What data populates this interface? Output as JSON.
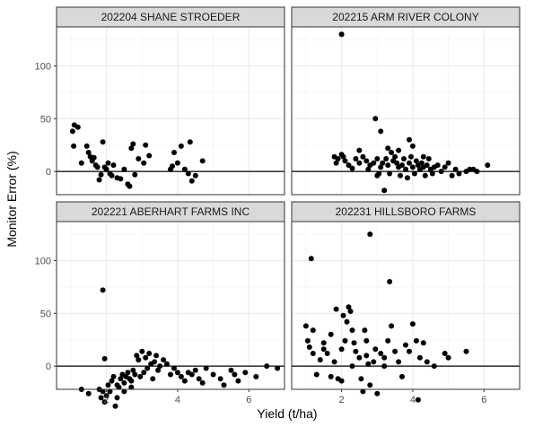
{
  "chart_data": {
    "type": "scatter",
    "xlabel": "Yield (t/ha)",
    "ylabel": "Monitor Error (%)",
    "xlim": [
      0.6,
      7.0
    ],
    "ylim": [
      -22,
      137
    ],
    "x_ticks": [
      2,
      4,
      6
    ],
    "y_ticks": [
      0,
      50,
      100
    ],
    "hline": 0,
    "grid": true,
    "colors": {
      "point": "#000000",
      "panel_border": "#333333",
      "strip_fill": "#d9d9d9",
      "grid_major": "#ebebeb",
      "grid_minor": "#f5f5f5",
      "hline": "#000000"
    },
    "panels": [
      {
        "title": "202204 SHANE STROEDER",
        "points": [
          [
            1.05,
            38
          ],
          [
            1.1,
            44
          ],
          [
            1.2,
            42
          ],
          [
            1.08,
            24
          ],
          [
            1.3,
            8
          ],
          [
            1.45,
            24
          ],
          [
            1.5,
            18
          ],
          [
            1.55,
            14
          ],
          [
            1.6,
            10
          ],
          [
            1.65,
            13
          ],
          [
            1.7,
            6
          ],
          [
            1.75,
            4
          ],
          [
            1.8,
            -8
          ],
          [
            1.85,
            -3
          ],
          [
            1.9,
            28
          ],
          [
            1.95,
            4
          ],
          [
            2.0,
            2
          ],
          [
            2.05,
            8
          ],
          [
            2.1,
            -2
          ],
          [
            2.15,
            -4
          ],
          [
            2.2,
            6
          ],
          [
            2.3,
            -6
          ],
          [
            2.4,
            -7
          ],
          [
            2.5,
            2
          ],
          [
            2.6,
            -12
          ],
          [
            2.65,
            -14
          ],
          [
            2.7,
            22
          ],
          [
            2.75,
            26
          ],
          [
            2.8,
            -3
          ],
          [
            2.9,
            12
          ],
          [
            3.05,
            8
          ],
          [
            3.1,
            25
          ],
          [
            3.2,
            15
          ],
          [
            3.8,
            2
          ],
          [
            3.85,
            5
          ],
          [
            3.9,
            18
          ],
          [
            4.0,
            8
          ],
          [
            4.1,
            24
          ],
          [
            4.2,
            2
          ],
          [
            4.3,
            -2
          ],
          [
            4.35,
            28
          ],
          [
            4.4,
            -9
          ],
          [
            4.5,
            -4
          ],
          [
            4.7,
            10
          ]
        ]
      },
      {
        "title": "202215 ARM RIVER COLONY",
        "points": [
          [
            2.0,
            130
          ],
          [
            2.95,
            50
          ],
          [
            3.1,
            38
          ],
          [
            3.9,
            30
          ],
          [
            4.0,
            24
          ],
          [
            1.8,
            14
          ],
          [
            1.9,
            12
          ],
          [
            1.85,
            8
          ],
          [
            2.0,
            16
          ],
          [
            2.05,
            14
          ],
          [
            2.1,
            10
          ],
          [
            2.2,
            6
          ],
          [
            2.3,
            3
          ],
          [
            2.4,
            12
          ],
          [
            2.5,
            8
          ],
          [
            2.6,
            14
          ],
          [
            2.7,
            10
          ],
          [
            2.75,
            2
          ],
          [
            2.8,
            6
          ],
          [
            2.9,
            8
          ],
          [
            3.0,
            12
          ],
          [
            3.05,
            -2
          ],
          [
            3.1,
            4
          ],
          [
            3.15,
            8
          ],
          [
            3.2,
            -18
          ],
          [
            3.25,
            12
          ],
          [
            3.3,
            6
          ],
          [
            3.35,
            -2
          ],
          [
            3.4,
            18
          ],
          [
            3.45,
            10
          ],
          [
            3.5,
            14
          ],
          [
            3.55,
            8
          ],
          [
            3.6,
            4
          ],
          [
            3.65,
            -4
          ],
          [
            3.7,
            6
          ],
          [
            3.75,
            12
          ],
          [
            3.8,
            2
          ],
          [
            3.85,
            -6
          ],
          [
            3.9,
            8
          ],
          [
            3.95,
            14
          ],
          [
            4.0,
            4
          ],
          [
            4.05,
            -2
          ],
          [
            4.1,
            10
          ],
          [
            4.15,
            6
          ],
          [
            4.2,
            2
          ],
          [
            4.25,
            8
          ],
          [
            4.3,
            4
          ],
          [
            4.35,
            -4
          ],
          [
            4.4,
            6
          ],
          [
            4.45,
            12
          ],
          [
            4.5,
            2
          ],
          [
            4.55,
            -2
          ],
          [
            4.6,
            4
          ],
          [
            4.7,
            6
          ],
          [
            4.8,
            0
          ],
          [
            4.9,
            4
          ],
          [
            5.0,
            8
          ],
          [
            5.1,
            -4
          ],
          [
            5.2,
            2
          ],
          [
            5.3,
            -2
          ],
          [
            5.5,
            0
          ],
          [
            5.6,
            2
          ],
          [
            5.7,
            2
          ],
          [
            5.8,
            0
          ],
          [
            6.1,
            6
          ],
          [
            3.3,
            22
          ],
          [
            3.6,
            20
          ],
          [
            2.5,
            20
          ],
          [
            4.3,
            14
          ],
          [
            3.0,
            -4
          ]
        ]
      },
      {
        "title": "202221 ABERHART FARMS INC",
        "points": [
          [
            1.9,
            72
          ],
          [
            1.95,
            7
          ],
          [
            1.3,
            -22
          ],
          [
            1.5,
            -26
          ],
          [
            1.8,
            -22
          ],
          [
            1.85,
            -30
          ],
          [
            1.9,
            -24
          ],
          [
            1.95,
            -34
          ],
          [
            2.0,
            -28
          ],
          [
            2.05,
            -18
          ],
          [
            2.1,
            -24
          ],
          [
            2.15,
            -14
          ],
          [
            2.2,
            -10
          ],
          [
            2.25,
            -38
          ],
          [
            2.3,
            -30
          ],
          [
            2.35,
            -20
          ],
          [
            2.4,
            -12
          ],
          [
            2.45,
            -8
          ],
          [
            2.5,
            -16
          ],
          [
            2.55,
            -10
          ],
          [
            2.6,
            -6
          ],
          [
            2.65,
            -12
          ],
          [
            2.7,
            -14
          ],
          [
            2.75,
            -4
          ],
          [
            2.8,
            -8
          ],
          [
            2.85,
            10
          ],
          [
            2.9,
            6
          ],
          [
            2.95,
            -10
          ],
          [
            3.0,
            14
          ],
          [
            3.05,
            -6
          ],
          [
            3.1,
            8
          ],
          [
            3.15,
            -2
          ],
          [
            3.2,
            12
          ],
          [
            3.25,
            2
          ],
          [
            3.3,
            -12
          ],
          [
            3.35,
            4
          ],
          [
            3.4,
            10
          ],
          [
            3.45,
            -4
          ],
          [
            3.5,
            0
          ],
          [
            3.6,
            6
          ],
          [
            3.7,
            2
          ],
          [
            3.8,
            -8
          ],
          [
            3.9,
            -2
          ],
          [
            4.0,
            -6
          ],
          [
            4.1,
            -10
          ],
          [
            4.2,
            -14
          ],
          [
            4.3,
            -6
          ],
          [
            4.4,
            -8
          ],
          [
            4.5,
            -4
          ],
          [
            4.6,
            -12
          ],
          [
            4.7,
            -16
          ],
          [
            4.8,
            -2
          ],
          [
            5.0,
            -8
          ],
          [
            5.2,
            -12
          ],
          [
            5.3,
            -18
          ],
          [
            5.5,
            -4
          ],
          [
            5.6,
            -8
          ],
          [
            5.7,
            -14
          ],
          [
            5.9,
            -6
          ],
          [
            6.2,
            -10
          ],
          [
            6.5,
            0
          ],
          [
            6.8,
            -2
          ],
          [
            2.3,
            -18
          ],
          [
            2.5,
            -24
          ],
          [
            2.7,
            -20
          ]
        ]
      },
      {
        "title": "202231 HILLSBORO FARMS",
        "points": [
          [
            2.8,
            125
          ],
          [
            1.15,
            102
          ],
          [
            3.35,
            80
          ],
          [
            1.0,
            38
          ],
          [
            1.05,
            24
          ],
          [
            1.1,
            18
          ],
          [
            1.2,
            12
          ],
          [
            1.3,
            -8
          ],
          [
            1.4,
            6
          ],
          [
            1.5,
            22
          ],
          [
            1.6,
            12
          ],
          [
            1.7,
            -10
          ],
          [
            1.8,
            4
          ],
          [
            1.85,
            54
          ],
          [
            1.9,
            -12
          ],
          [
            2.0,
            16
          ],
          [
            2.05,
            48
          ],
          [
            2.1,
            24
          ],
          [
            2.15,
            42
          ],
          [
            2.2,
            56
          ],
          [
            2.25,
            52
          ],
          [
            2.3,
            34
          ],
          [
            2.35,
            22
          ],
          [
            2.4,
            14
          ],
          [
            2.5,
            8
          ],
          [
            2.55,
            -12
          ],
          [
            2.6,
            -24
          ],
          [
            2.65,
            34
          ],
          [
            2.7,
            24
          ],
          [
            2.75,
            2
          ],
          [
            2.8,
            -18
          ],
          [
            2.9,
            4
          ],
          [
            2.95,
            16
          ],
          [
            3.0,
            -26
          ],
          [
            3.1,
            12
          ],
          [
            3.2,
            0
          ],
          [
            3.3,
            24
          ],
          [
            3.4,
            38
          ],
          [
            3.5,
            14
          ],
          [
            3.6,
            4
          ],
          [
            3.7,
            -10
          ],
          [
            3.8,
            20
          ],
          [
            3.9,
            14
          ],
          [
            4.0,
            40
          ],
          [
            4.1,
            24
          ],
          [
            4.15,
            -32
          ],
          [
            4.2,
            8
          ],
          [
            4.3,
            22
          ],
          [
            4.4,
            4
          ],
          [
            4.6,
            0
          ],
          [
            4.9,
            12
          ],
          [
            5.0,
            8
          ],
          [
            5.5,
            14
          ],
          [
            2.0,
            -14
          ],
          [
            1.7,
            30
          ],
          [
            1.5,
            16
          ],
          [
            2.3,
            0
          ],
          [
            2.7,
            10
          ],
          [
            3.2,
            8
          ],
          [
            1.2,
            34
          ]
        ]
      }
    ]
  }
}
